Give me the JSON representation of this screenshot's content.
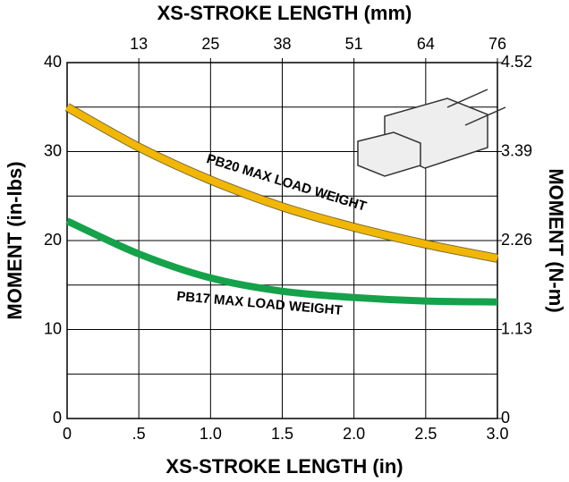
{
  "chart_data": {
    "type": "line",
    "title": "XS-STROKE LENGTH (mm)",
    "xlabel": "XS-STROKE LENGTH (in)",
    "ylabel": "MOMENT (in-lbs)",
    "y2label": "MOMENT (N-m)",
    "x": [
      0,
      0.5,
      1.0,
      1.5,
      2.0,
      2.5,
      3.0
    ],
    "series": [
      {
        "name": "PB20 MAX LOAD WEIGHT",
        "color": "#f2b705",
        "values": [
          35,
          30.5,
          26.8,
          23.8,
          21.5,
          19.6,
          18
        ]
      },
      {
        "name": "PB17 MAX LOAD WEIGHT",
        "color": "#15a24a",
        "values": [
          22.2,
          18.5,
          15.8,
          14.3,
          13.6,
          13.2,
          13.1
        ]
      }
    ],
    "xlim": [
      0,
      3.0
    ],
    "xticks": [
      0,
      {
        "value": 0.5,
        "label": ".5"
      },
      {
        "value": 1.0,
        "label": "1.0"
      },
      1.5,
      {
        "value": 2.0,
        "label": "2.0"
      },
      2.5,
      {
        "value": 3.0,
        "label": "3.0"
      }
    ],
    "x2lim": [
      0,
      76.2
    ],
    "x2ticks": [
      {
        "value": 12.7,
        "label": "13"
      },
      {
        "value": 25.4,
        "label": "25"
      },
      {
        "value": 38.1,
        "label": "38"
      },
      {
        "value": 50.8,
        "label": "51"
      },
      {
        "value": 63.5,
        "label": "64"
      },
      {
        "value": 76.2,
        "label": "76"
      }
    ],
    "ylim": [
      0,
      40
    ],
    "yticks": [
      0,
      10,
      20,
      30,
      40
    ],
    "minor_yticks": [
      5,
      15,
      25,
      35
    ],
    "y2lim": [
      0,
      4.52
    ],
    "y2ticks": [
      0,
      1.13,
      2.26,
      3.39,
      4.52
    ],
    "grid": true
  }
}
